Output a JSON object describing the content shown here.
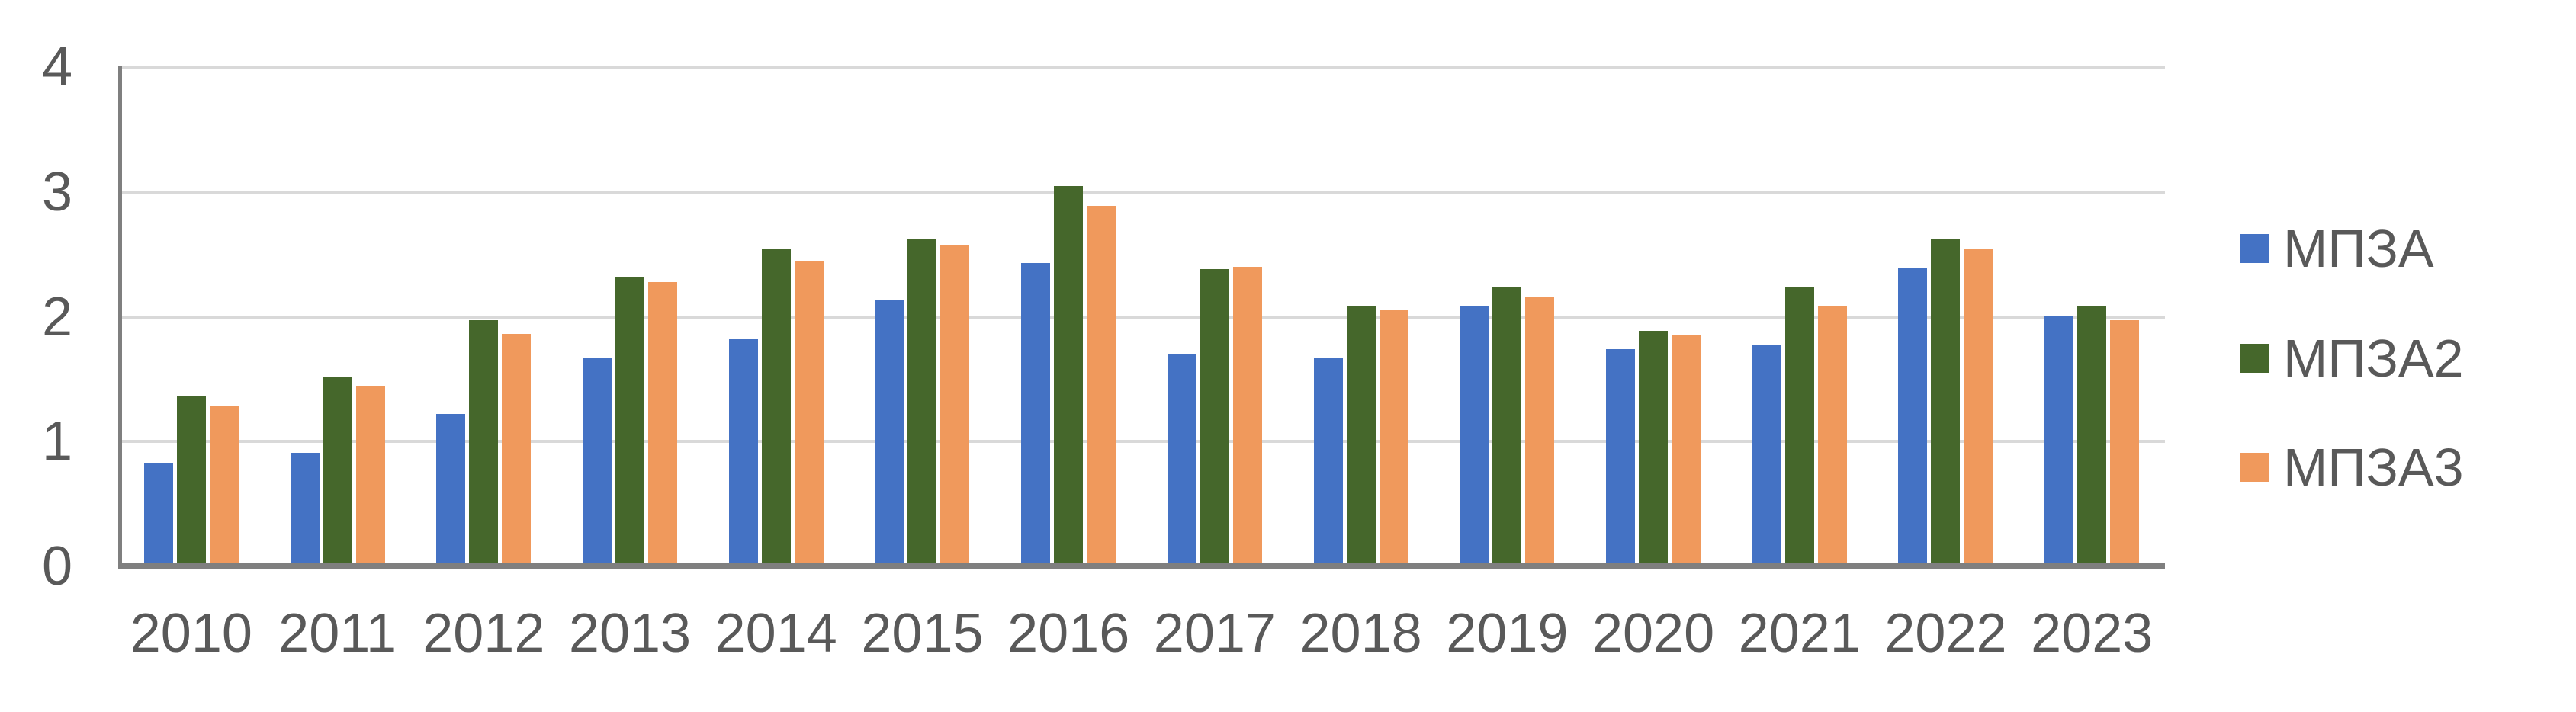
{
  "chart_data": {
    "type": "bar",
    "title": "",
    "xlabel": "",
    "ylabel": "",
    "categories": [
      "2010",
      "2011",
      "2012",
      "2013",
      "2014",
      "2015",
      "2016",
      "2017",
      "2018",
      "2019",
      "2020",
      "2021",
      "2022",
      "2023"
    ],
    "series": [
      {
        "name": "МПЗА",
        "color": "#4472C4",
        "values": [
          0.83,
          0.91,
          1.22,
          1.67,
          1.82,
          2.13,
          2.43,
          1.7,
          1.67,
          2.08,
          1.74,
          1.78,
          2.39,
          2.01
        ]
      },
      {
        "name": "МПЗА2",
        "color": "#45672B",
        "values": [
          1.36,
          1.52,
          1.97,
          2.32,
          2.54,
          2.62,
          3.05,
          2.38,
          2.08,
          2.24,
          1.89,
          2.24,
          2.62,
          2.08
        ]
      },
      {
        "name": "МПЗА3",
        "color": "#F0995C",
        "values": [
          1.28,
          1.44,
          1.86,
          2.28,
          2.44,
          2.58,
          2.89,
          2.4,
          2.05,
          2.16,
          1.85,
          2.08,
          2.54,
          1.97
        ]
      }
    ],
    "y_ticks": [
      "0",
      "1",
      "2",
      "3",
      "4"
    ],
    "ylim": [
      0,
      4
    ],
    "grid": true,
    "legend_position": "right",
    "colors": {
      "gridline": "#D9D9D9",
      "axis_line": "#7F7F7F",
      "tick_text": "#595959",
      "background": "#FFFFFF"
    }
  }
}
